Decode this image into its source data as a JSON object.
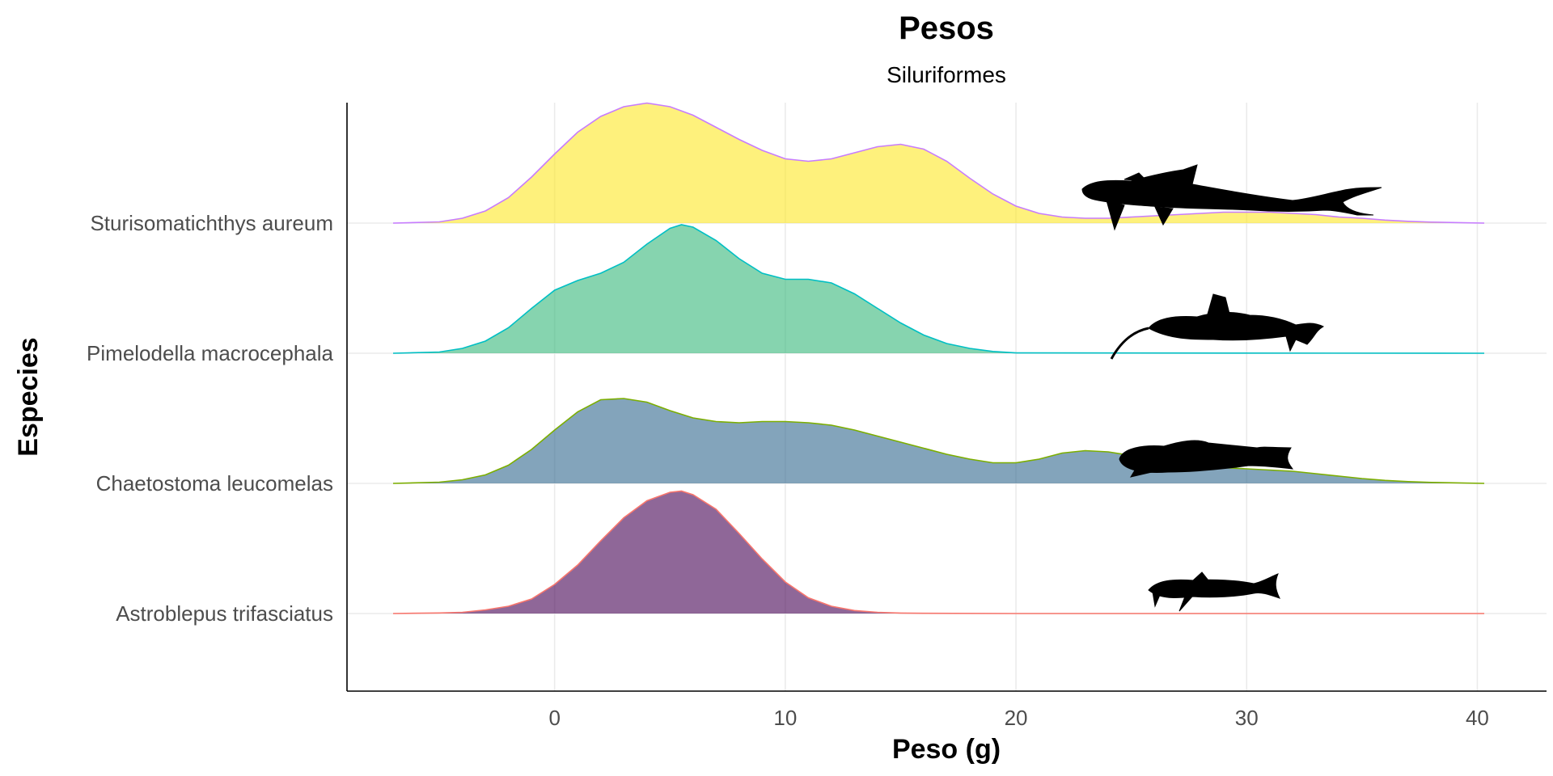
{
  "chart_data": {
    "type": "ridgeline",
    "title": "Pesos",
    "subtitle": "Siluriformes",
    "xlabel": "Peso (g)",
    "ylabel": "Especies",
    "xlim": [
      -9,
      43
    ],
    "x_ticks": [
      0,
      10,
      20,
      30,
      40
    ],
    "grid": true,
    "series": [
      {
        "name": "Astroblepus trifasciatus",
        "fill": "#440154",
        "line": "#F8766D",
        "x": [
          -7,
          -5,
          -4,
          -3,
          -2,
          -1,
          0,
          1,
          2,
          3,
          4,
          5,
          5.5,
          6,
          7,
          8,
          9,
          10,
          11,
          12,
          13,
          14,
          15,
          16,
          20,
          30,
          40.3
        ],
        "y": [
          0,
          0.005,
          0.01,
          0.03,
          0.06,
          0.12,
          0.24,
          0.4,
          0.6,
          0.79,
          0.93,
          1.0,
          1.01,
          0.98,
          0.86,
          0.66,
          0.45,
          0.26,
          0.13,
          0.06,
          0.025,
          0.01,
          0.004,
          0.002,
          0,
          0,
          0
        ]
      },
      {
        "name": "Chaetostoma leucomelas",
        "fill": "#31688E",
        "line": "#7CAE00",
        "x": [
          -7,
          -5,
          -4,
          -3,
          -2,
          -1,
          0,
          1,
          2,
          3,
          4,
          5,
          6,
          7,
          8,
          9,
          10,
          11,
          12,
          13,
          14,
          15,
          16,
          17,
          18,
          19,
          20,
          21,
          22,
          23,
          24,
          25,
          26,
          27,
          28,
          29,
          30,
          31,
          32,
          33,
          34,
          35,
          36,
          37,
          38,
          40.3
        ],
        "y": [
          0,
          0.01,
          0.03,
          0.07,
          0.15,
          0.28,
          0.44,
          0.59,
          0.69,
          0.7,
          0.67,
          0.6,
          0.54,
          0.51,
          0.5,
          0.51,
          0.51,
          0.5,
          0.48,
          0.44,
          0.39,
          0.34,
          0.29,
          0.24,
          0.2,
          0.17,
          0.17,
          0.2,
          0.25,
          0.27,
          0.26,
          0.23,
          0.19,
          0.16,
          0.14,
          0.13,
          0.12,
          0.11,
          0.1,
          0.08,
          0.06,
          0.04,
          0.025,
          0.015,
          0.008,
          0
        ]
      },
      {
        "name": "Pimelodella macrocephala",
        "fill": "#35B779",
        "line": "#00BFC4",
        "x": [
          -7,
          -5,
          -4,
          -3,
          -2,
          -1,
          0,
          1,
          2,
          3,
          4,
          5,
          5.5,
          6,
          7,
          8,
          9,
          10,
          11,
          12,
          13,
          14,
          15,
          16,
          17,
          18,
          19,
          20,
          40.3
        ],
        "y": [
          0,
          0.01,
          0.04,
          0.1,
          0.21,
          0.37,
          0.52,
          0.6,
          0.66,
          0.75,
          0.9,
          1.03,
          1.06,
          1.04,
          0.93,
          0.78,
          0.66,
          0.61,
          0.61,
          0.58,
          0.49,
          0.37,
          0.25,
          0.15,
          0.08,
          0.04,
          0.015,
          0.003,
          0
        ]
      },
      {
        "name": "Sturisomatichthys aureum",
        "fill": "#FDE725",
        "line": "#C77CFF",
        "x": [
          -7,
          -5,
          -4,
          -3,
          -2,
          -1,
          0,
          1,
          2,
          3,
          4,
          5,
          6,
          7,
          8,
          9,
          10,
          11,
          12,
          13,
          14,
          15,
          16,
          17,
          18,
          19,
          20,
          21,
          22,
          23,
          24,
          25,
          26,
          27,
          28,
          29,
          30,
          31,
          32,
          33,
          34,
          35,
          36,
          37,
          38,
          40.3
        ],
        "y": [
          0,
          0.01,
          0.04,
          0.1,
          0.21,
          0.38,
          0.57,
          0.75,
          0.88,
          0.96,
          0.99,
          0.96,
          0.89,
          0.79,
          0.69,
          0.6,
          0.53,
          0.51,
          0.53,
          0.58,
          0.63,
          0.65,
          0.61,
          0.51,
          0.37,
          0.24,
          0.14,
          0.08,
          0.05,
          0.04,
          0.04,
          0.05,
          0.06,
          0.07,
          0.08,
          0.09,
          0.09,
          0.09,
          0.08,
          0.07,
          0.05,
          0.04,
          0.025,
          0.015,
          0.008,
          0
        ]
      }
    ],
    "silhouettes": [
      {
        "species": "Astroblepus trifasciatus",
        "icon": "fish-silhouette-icon"
      },
      {
        "species": "Chaetostoma leucomelas",
        "icon": "fish-silhouette-icon"
      },
      {
        "species": "Pimelodella macrocephala",
        "icon": "fish-silhouette-icon"
      },
      {
        "species": "Sturisomatichthys aureum",
        "icon": "fish-silhouette-icon"
      }
    ]
  }
}
